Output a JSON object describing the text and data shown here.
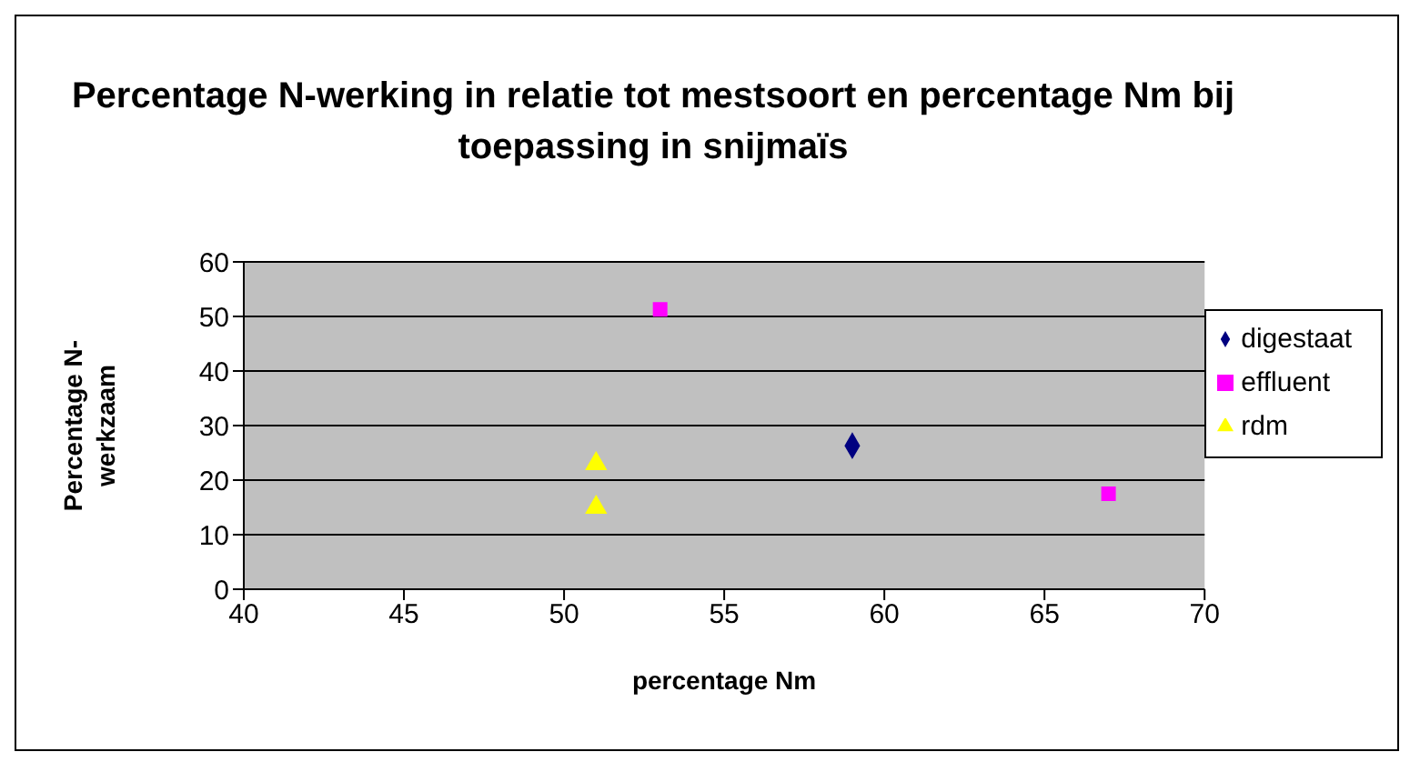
{
  "chart_data": {
    "type": "scatter",
    "title": "Percentage N-werking in relatie tot mestsoort en percentage Nm bij toepassing in snijmaïs",
    "xlabel": "percentage Nm",
    "ylabel": "Percentage N-werkzaam",
    "series": [
      {
        "name": "digestaat",
        "color": "#000080",
        "marker": "diamond",
        "x": [
          59
        ],
        "values": [
          26.3
        ]
      },
      {
        "name": "effluent",
        "color": "#ff00ff",
        "marker": "square",
        "x": [
          53,
          67
        ],
        "values": [
          51.3,
          17.5
        ]
      },
      {
        "name": "rdm",
        "color": "#ffff00",
        "marker": "triangle",
        "x": [
          51,
          51
        ],
        "values": [
          23,
          15
        ]
      }
    ],
    "xlim": [
      40,
      70
    ],
    "xticks": [
      40,
      45,
      50,
      55,
      60,
      65,
      70
    ],
    "ylim": [
      0,
      60
    ],
    "yticks": [
      0,
      10,
      20,
      30,
      40,
      50,
      60
    ],
    "grid": "y",
    "legend": "right"
  }
}
